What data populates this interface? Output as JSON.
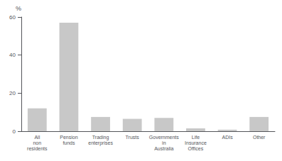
{
  "chart_data": {
    "type": "bar",
    "categories": [
      "All\nnon\nresidents",
      "Pension\nfunds",
      "Trading\nenterprises",
      "Trusts",
      "Governments\nin\nAustralia",
      "Life\nInsurance\nOffices",
      "ADIs",
      "Other"
    ],
    "values": [
      12,
      57,
      7.5,
      6.5,
      7,
      1.5,
      0.8,
      7.5
    ],
    "color": "#c8c8c8",
    "ylabel": "%",
    "ylim": [
      0,
      60
    ],
    "yticks": [
      0,
      20,
      40,
      60
    ],
    "grid": false
  }
}
